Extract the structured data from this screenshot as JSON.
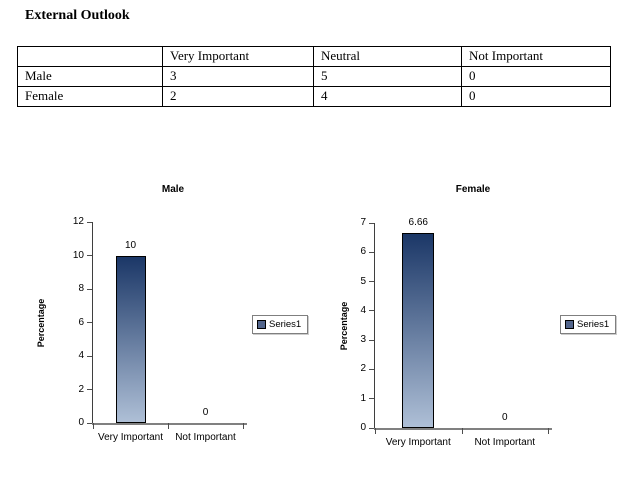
{
  "page_title": "External Outlook",
  "table": {
    "headers": [
      "",
      "Very Important",
      "Neutral",
      "Not Important"
    ],
    "rows": [
      {
        "label": "Male",
        "values": [
          "3",
          "5",
          "0"
        ]
      },
      {
        "label": "Female",
        "values": [
          "2",
          "4",
          "0"
        ]
      }
    ]
  },
  "chart_data": [
    {
      "type": "bar",
      "title": "Male",
      "categories": [
        "Very Important",
        "Not Important"
      ],
      "values": [
        10,
        0
      ],
      "data_labels": [
        "10",
        "0"
      ],
      "xlabel": "",
      "ylabel": "Percentage",
      "ylim": [
        0,
        12
      ],
      "ytick_step": 2,
      "legend": [
        "Series1"
      ],
      "legend_position": "right",
      "grid": false,
      "bar_color_top": "#1B3767",
      "bar_color_bottom": "#AEBFD6"
    },
    {
      "type": "bar",
      "title": "Female",
      "categories": [
        "Very Important",
        "Not Important"
      ],
      "values": [
        6.66,
        0
      ],
      "data_labels": [
        "6.66",
        "0"
      ],
      "xlabel": "",
      "ylabel": "Percentage",
      "ylim": [
        0,
        7
      ],
      "ytick_step": 1,
      "legend": [
        "Series1"
      ],
      "legend_position": "right",
      "grid": false,
      "bar_color_top": "#1B3767",
      "bar_color_bottom": "#AEBFD6"
    }
  ],
  "colors": {
    "background": "#ffffff",
    "text": "#000000",
    "table_border": "#000000",
    "value_axis_line": "#3f3f3f",
    "category_axis_line": "#808080",
    "tick": "#4d4d4d",
    "legend_marker": "#52658C",
    "legend_border": "#7f7f7f"
  }
}
